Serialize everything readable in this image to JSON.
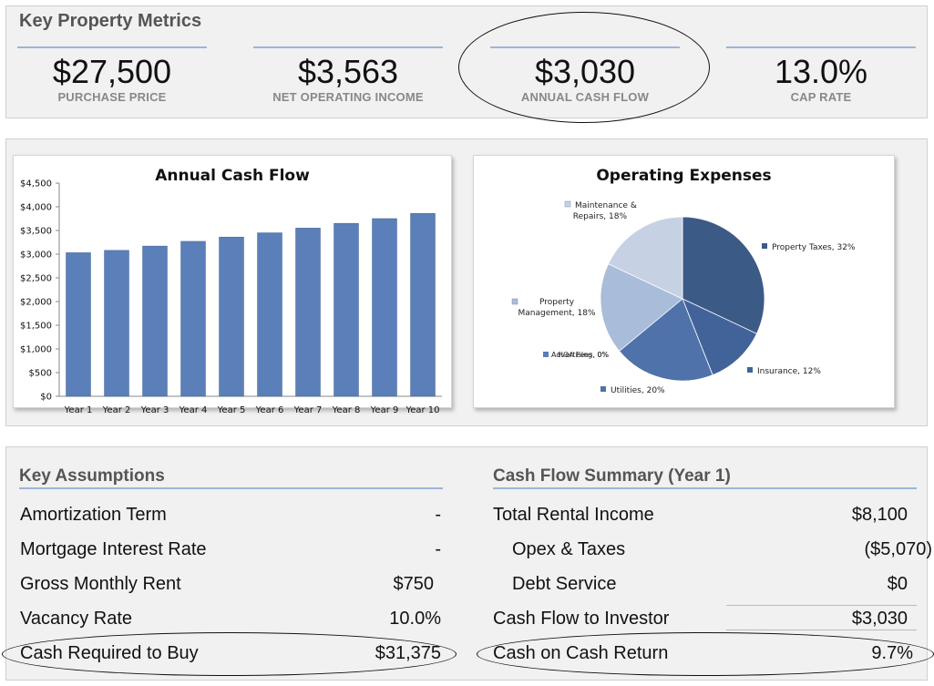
{
  "metrics": {
    "title": "Key Property Metrics",
    "items": [
      {
        "value": "$27,500",
        "label": "PURCHASE PRICE"
      },
      {
        "value": "$3,563",
        "label": "NET OPERATING INCOME"
      },
      {
        "value": "$3,030",
        "label": "ANNUAL CASH FLOW"
      },
      {
        "value": "13.0%",
        "label": "CAP RATE"
      }
    ]
  },
  "chart_data": [
    {
      "type": "bar",
      "title": "Annual Cash Flow",
      "categories": [
        "Year 1",
        "Year 2",
        "Year 3",
        "Year 4",
        "Year 5",
        "Year 6",
        "Year 7",
        "Year 8",
        "Year 9",
        "Year 10"
      ],
      "values": [
        3030,
        3080,
        3170,
        3270,
        3360,
        3450,
        3550,
        3650,
        3750,
        3860
      ],
      "ylim": [
        0,
        4500
      ],
      "yticks": [
        "$0",
        "$500",
        "$1,000",
        "$1,500",
        "$2,000",
        "$2,500",
        "$3,000",
        "$3,500",
        "$4,000",
        "$4,500"
      ],
      "color": "#5b7fb8"
    },
    {
      "type": "pie",
      "title": "Operating Expenses",
      "slices": [
        {
          "name": "Property Taxes, 32%",
          "value": 32,
          "color": "#3c5a86"
        },
        {
          "name": "Insurance, 12%",
          "value": 12,
          "color": "#42639a"
        },
        {
          "name": "Utilities, 20%",
          "value": 20,
          "color": "#4f72aa"
        },
        {
          "name": "Advertising, 0%",
          "value": 0,
          "color": "#5a7dba"
        },
        {
          "name": "HOA Fees, 0%",
          "value": 0,
          "color": "#6a8bc4"
        },
        {
          "name": "Property Management, 18%",
          "value": 18,
          "color": "#a9bcd9"
        },
        {
          "name": "Maintenance & Repairs, 18%",
          "value": 18,
          "color": "#c7d1e4"
        }
      ],
      "labels": {
        "taxes": "Property Taxes, 32%",
        "insurance": "Insurance, 12%",
        "utilities": "Utilities, 20%",
        "advertising": "Advertising, 0%",
        "hoa": "HOA Fees, 0%",
        "mgmt_line1": "Property",
        "mgmt_line2": "Management, 18%",
        "maint_line1": "Maintenance &",
        "maint_line2": "Repairs, 18%"
      }
    }
  ],
  "assumptions": {
    "title": "Key Assumptions",
    "rows": [
      {
        "label": "Amortization Term",
        "value": "-"
      },
      {
        "label": "Mortgage Interest Rate",
        "value": "-"
      },
      {
        "label": "Gross Monthly Rent",
        "value": "$750"
      },
      {
        "label": "Vacancy Rate",
        "value": "10.0%"
      },
      {
        "label": "Cash Required to Buy",
        "value": "$31,375"
      }
    ]
  },
  "summary": {
    "title": "Cash Flow Summary (Year 1)",
    "rows": [
      {
        "label": "Total Rental Income",
        "value": "$8,100"
      },
      {
        "label": "Opex & Taxes",
        "value": "($5,070)"
      },
      {
        "label": "Debt Service",
        "value": "$0"
      },
      {
        "label": "Cash Flow to Investor",
        "value": "$3,030"
      },
      {
        "label": "Cash on Cash Return",
        "value": "9.7%"
      }
    ]
  }
}
